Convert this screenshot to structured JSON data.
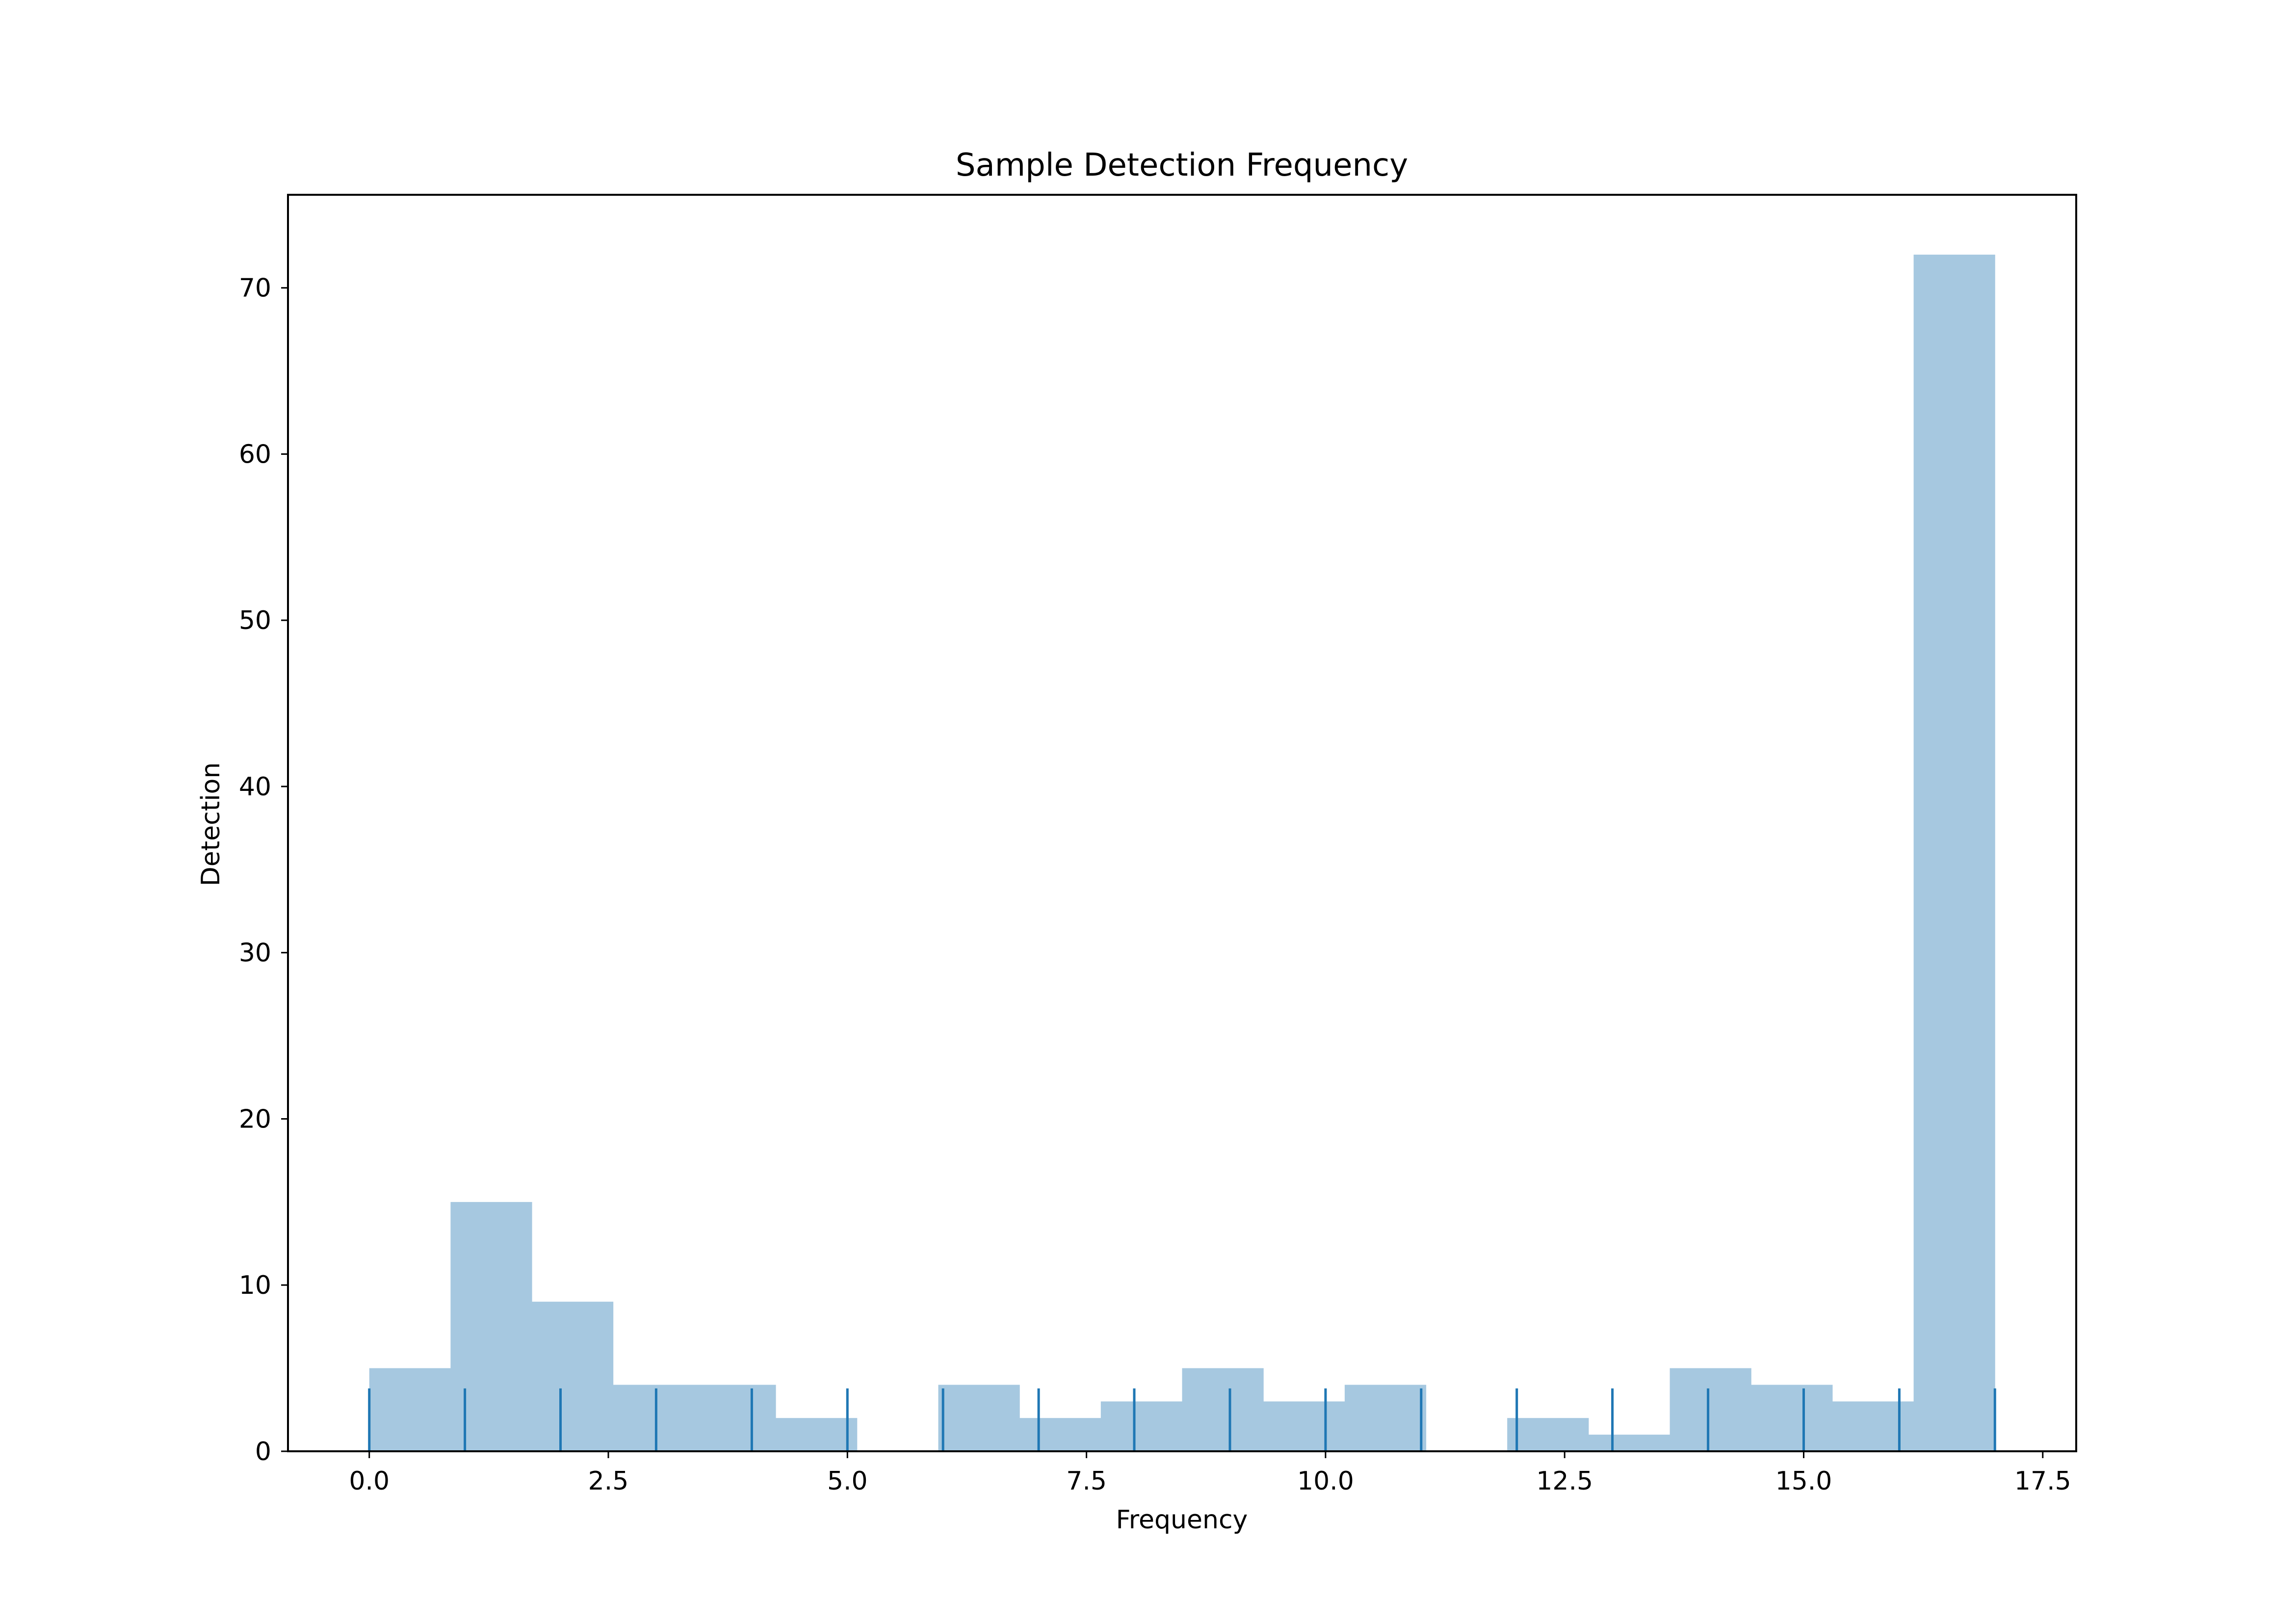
{
  "chart_data": {
    "type": "bar",
    "title": "Sample Detection Frequency",
    "xlabel": "Frequency",
    "ylabel": "Detection",
    "xlim": [
      -0.85,
      17.85
    ],
    "ylim": [
      0,
      75.6
    ],
    "xticks": [
      "0.0",
      "2.5",
      "5.0",
      "7.5",
      "10.0",
      "12.5",
      "15.0",
      "17.5"
    ],
    "xtick_values": [
      0,
      2.5,
      5,
      7.5,
      10,
      12.5,
      15,
      17.5
    ],
    "yticks": [
      "0",
      "10",
      "20",
      "30",
      "40",
      "50",
      "60",
      "70"
    ],
    "ytick_values": [
      0,
      10,
      20,
      30,
      40,
      50,
      60,
      70
    ],
    "grid": false,
    "histogram": {
      "bin_edges": [
        0.0,
        0.85,
        1.7,
        2.55,
        3.4,
        4.25,
        5.1,
        5.95,
        6.8,
        7.65,
        8.5,
        9.35,
        10.2,
        11.05,
        11.9,
        12.75,
        13.6,
        14.45,
        15.3,
        16.15,
        17.0
      ],
      "counts": [
        5,
        15,
        9,
        4,
        4,
        2,
        0,
        4,
        2,
        3,
        5,
        3,
        4,
        0,
        2,
        1,
        5,
        4,
        3,
        72
      ],
      "color": "#a6c8e0"
    },
    "rug": {
      "values": [
        0,
        1,
        2,
        3,
        4,
        5,
        6,
        7,
        8,
        9,
        10,
        11,
        12,
        13,
        14,
        15,
        16,
        17
      ],
      "color": "#1f77b4"
    }
  }
}
